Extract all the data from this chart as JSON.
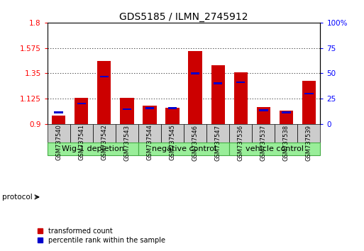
{
  "title": "GDS5185 / ILMN_2745912",
  "samples": [
    "GSM737540",
    "GSM737541",
    "GSM737542",
    "GSM737543",
    "GSM737544",
    "GSM737545",
    "GSM737546",
    "GSM737547",
    "GSM737536",
    "GSM737537",
    "GSM737538",
    "GSM737539"
  ],
  "red_values": [
    0.975,
    1.13,
    1.46,
    1.13,
    1.06,
    1.04,
    1.55,
    1.42,
    1.36,
    1.05,
    1.02,
    1.28
  ],
  "blue_values": [
    1.0,
    1.08,
    1.32,
    1.03,
    1.04,
    1.04,
    1.35,
    1.26,
    1.27,
    1.02,
    1.0,
    1.17
  ],
  "ylim": [
    0.9,
    1.8
  ],
  "yticks": [
    0.9,
    1.125,
    1.35,
    1.575,
    1.8
  ],
  "ytick_labels": [
    "0.9",
    "1.125",
    "1.35",
    "1.575",
    "1.8"
  ],
  "y2_ticks": [
    0,
    25,
    50,
    75,
    100
  ],
  "y2_tick_labels": [
    "0",
    "25",
    "50",
    "75",
    "100%"
  ],
  "bar_color": "#cc0000",
  "blue_color": "#0000cc",
  "bar_width": 0.6,
  "groups": [
    {
      "label": "Wig-1 depletion",
      "start": 0,
      "end": 4
    },
    {
      "label": "negative control",
      "start": 4,
      "end": 8
    },
    {
      "label": "vehicle control",
      "start": 8,
      "end": 12
    }
  ],
  "group_color": "#99ee99",
  "group_edge_color": "#44aa44",
  "sample_box_color": "#cccccc",
  "background_color": "#ffffff",
  "bar_color_hex": "#cc0000",
  "blue_color_hex": "#0000cc",
  "legend_red_label": "transformed count",
  "legend_blue_label": "percentile rank within the sample",
  "protocol_label": "protocol",
  "title_fontsize": 10,
  "tick_fontsize": 7.5,
  "group_fontsize": 8,
  "sample_fontsize": 6
}
